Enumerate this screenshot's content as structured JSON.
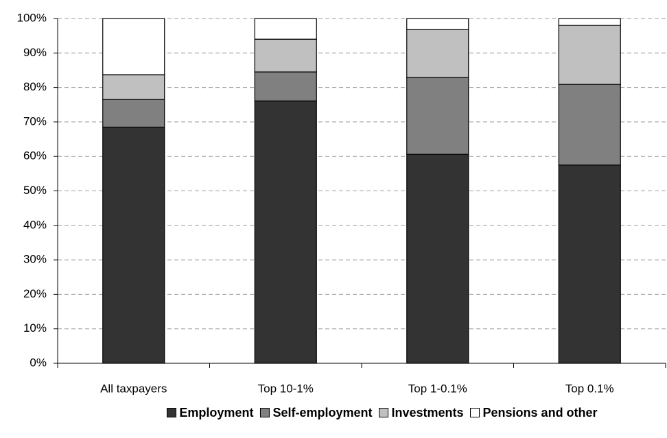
{
  "chart_data": {
    "type": "bar",
    "stacked": true,
    "categories": [
      "All taxpayers",
      "Top 10-1%",
      "Top 1-0.1%",
      "Top 0.1%"
    ],
    "series": [
      {
        "name": "Employment",
        "color": "#333333",
        "values": [
          68.5,
          76.1,
          60.6,
          57.5
        ]
      },
      {
        "name": "Self-employment",
        "color": "#808080",
        "values": [
          8,
          8.4,
          22.3,
          23.4
        ]
      },
      {
        "name": "Investments",
        "color": "#c0c0c0",
        "values": [
          7.2,
          9.5,
          13.9,
          17.1
        ]
      },
      {
        "name": "Pensions and other",
        "color": "#ffffff",
        "values": [
          16.3,
          6,
          3.2,
          2
        ]
      }
    ],
    "ylim": [
      0,
      100
    ],
    "yticks": [
      {
        "value": 0,
        "label": "0%"
      },
      {
        "value": 10,
        "label": "10%"
      },
      {
        "value": 20,
        "label": "20%"
      },
      {
        "value": 30,
        "label": "30%"
      },
      {
        "value": 40,
        "label": "40%"
      },
      {
        "value": 50,
        "label": "50%"
      },
      {
        "value": 60,
        "label": "60%"
      },
      {
        "value": 70,
        "label": "70%"
      },
      {
        "value": 80,
        "label": "80%"
      },
      {
        "value": 90,
        "label": "90%"
      },
      {
        "value": 100,
        "label": "100%"
      }
    ],
    "grid": true,
    "legend": "bottom"
  }
}
